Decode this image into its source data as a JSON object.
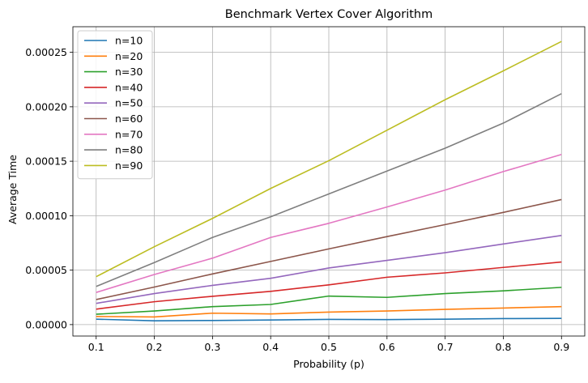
{
  "chart_data": {
    "type": "line",
    "title": "Benchmark Vertex Cover Algorithm",
    "xlabel": "Probability (p)",
    "ylabel": "Average Time",
    "x": [
      0.1,
      0.2,
      0.3,
      0.4,
      0.5,
      0.6,
      0.7,
      0.8,
      0.9
    ],
    "x_ticks": [
      "0.1",
      "0.2",
      "0.3",
      "0.4",
      "0.5",
      "0.6",
      "0.7",
      "0.8",
      "0.9"
    ],
    "y_ticks": [
      0,
      5e-05,
      0.0001,
      0.00015,
      0.0002,
      0.00025
    ],
    "y_tick_labels": [
      "0.00000",
      "0.00005",
      "0.00010",
      "0.00015",
      "0.00020",
      "0.00025"
    ],
    "xlim": [
      0.06,
      0.94
    ],
    "ylim": [
      -1.05e-05,
      0.0002735
    ],
    "grid": true,
    "legend_position": "top-left",
    "series": [
      {
        "name": "n=10",
        "color": "#1f77b4",
        "values": [
          5e-06,
          3.5e-06,
          3.8e-06,
          4.2e-06,
          4.8e-06,
          4.6e-06,
          5e-06,
          5.5e-06,
          5.7e-06
        ]
      },
      {
        "name": "n=20",
        "color": "#ff7f0e",
        "values": [
          7.5e-06,
          7e-06,
          1.05e-05,
          9.8e-06,
          1.15e-05,
          1.25e-05,
          1.4e-05,
          1.52e-05,
          1.65e-05
        ]
      },
      {
        "name": "n=30",
        "color": "#2ca02c",
        "values": [
          9.5e-06,
          1.25e-05,
          1.65e-05,
          1.85e-05,
          2.62e-05,
          2.5e-05,
          2.85e-05,
          3.1e-05,
          3.42e-05
        ]
      },
      {
        "name": "n=40",
        "color": "#d62728",
        "values": [
          1.42e-05,
          2.1e-05,
          2.6e-05,
          3.05e-05,
          3.65e-05,
          4.35e-05,
          4.75e-05,
          5.25e-05,
          5.75e-05
        ]
      },
      {
        "name": "n=50",
        "color": "#9467bd",
        "values": [
          1.95e-05,
          2.85e-05,
          3.6e-05,
          4.25e-05,
          5.2e-05,
          5.9e-05,
          6.6e-05,
          7.4e-05,
          8.18e-05
        ]
      },
      {
        "name": "n=60",
        "color": "#8c564b",
        "values": [
          2.3e-05,
          3.45e-05,
          4.65e-05,
          5.8e-05,
          6.95e-05,
          8.08e-05,
          9.18e-05,
          0.000103,
          0.0001148
        ]
      },
      {
        "name": "n=70",
        "color": "#e377c2",
        "values": [
          2.95e-05,
          4.6e-05,
          6.1e-05,
          8e-05,
          9.3e-05,
          0.000108,
          0.0001235,
          0.0001405,
          0.0001562
        ]
      },
      {
        "name": "n=80",
        "color": "#7f7f7f",
        "values": [
          3.5e-05,
          5.7e-05,
          8e-05,
          9.9e-05,
          0.00012,
          0.000141,
          0.000162,
          0.000185,
          0.000212
        ]
      },
      {
        "name": "n=90",
        "color": "#bcbd22",
        "values": [
          4.4e-05,
          7.15e-05,
          9.75e-05,
          0.000125,
          0.0001505,
          0.0001785,
          0.0002065,
          0.000233,
          0.00026
        ]
      }
    ]
  }
}
